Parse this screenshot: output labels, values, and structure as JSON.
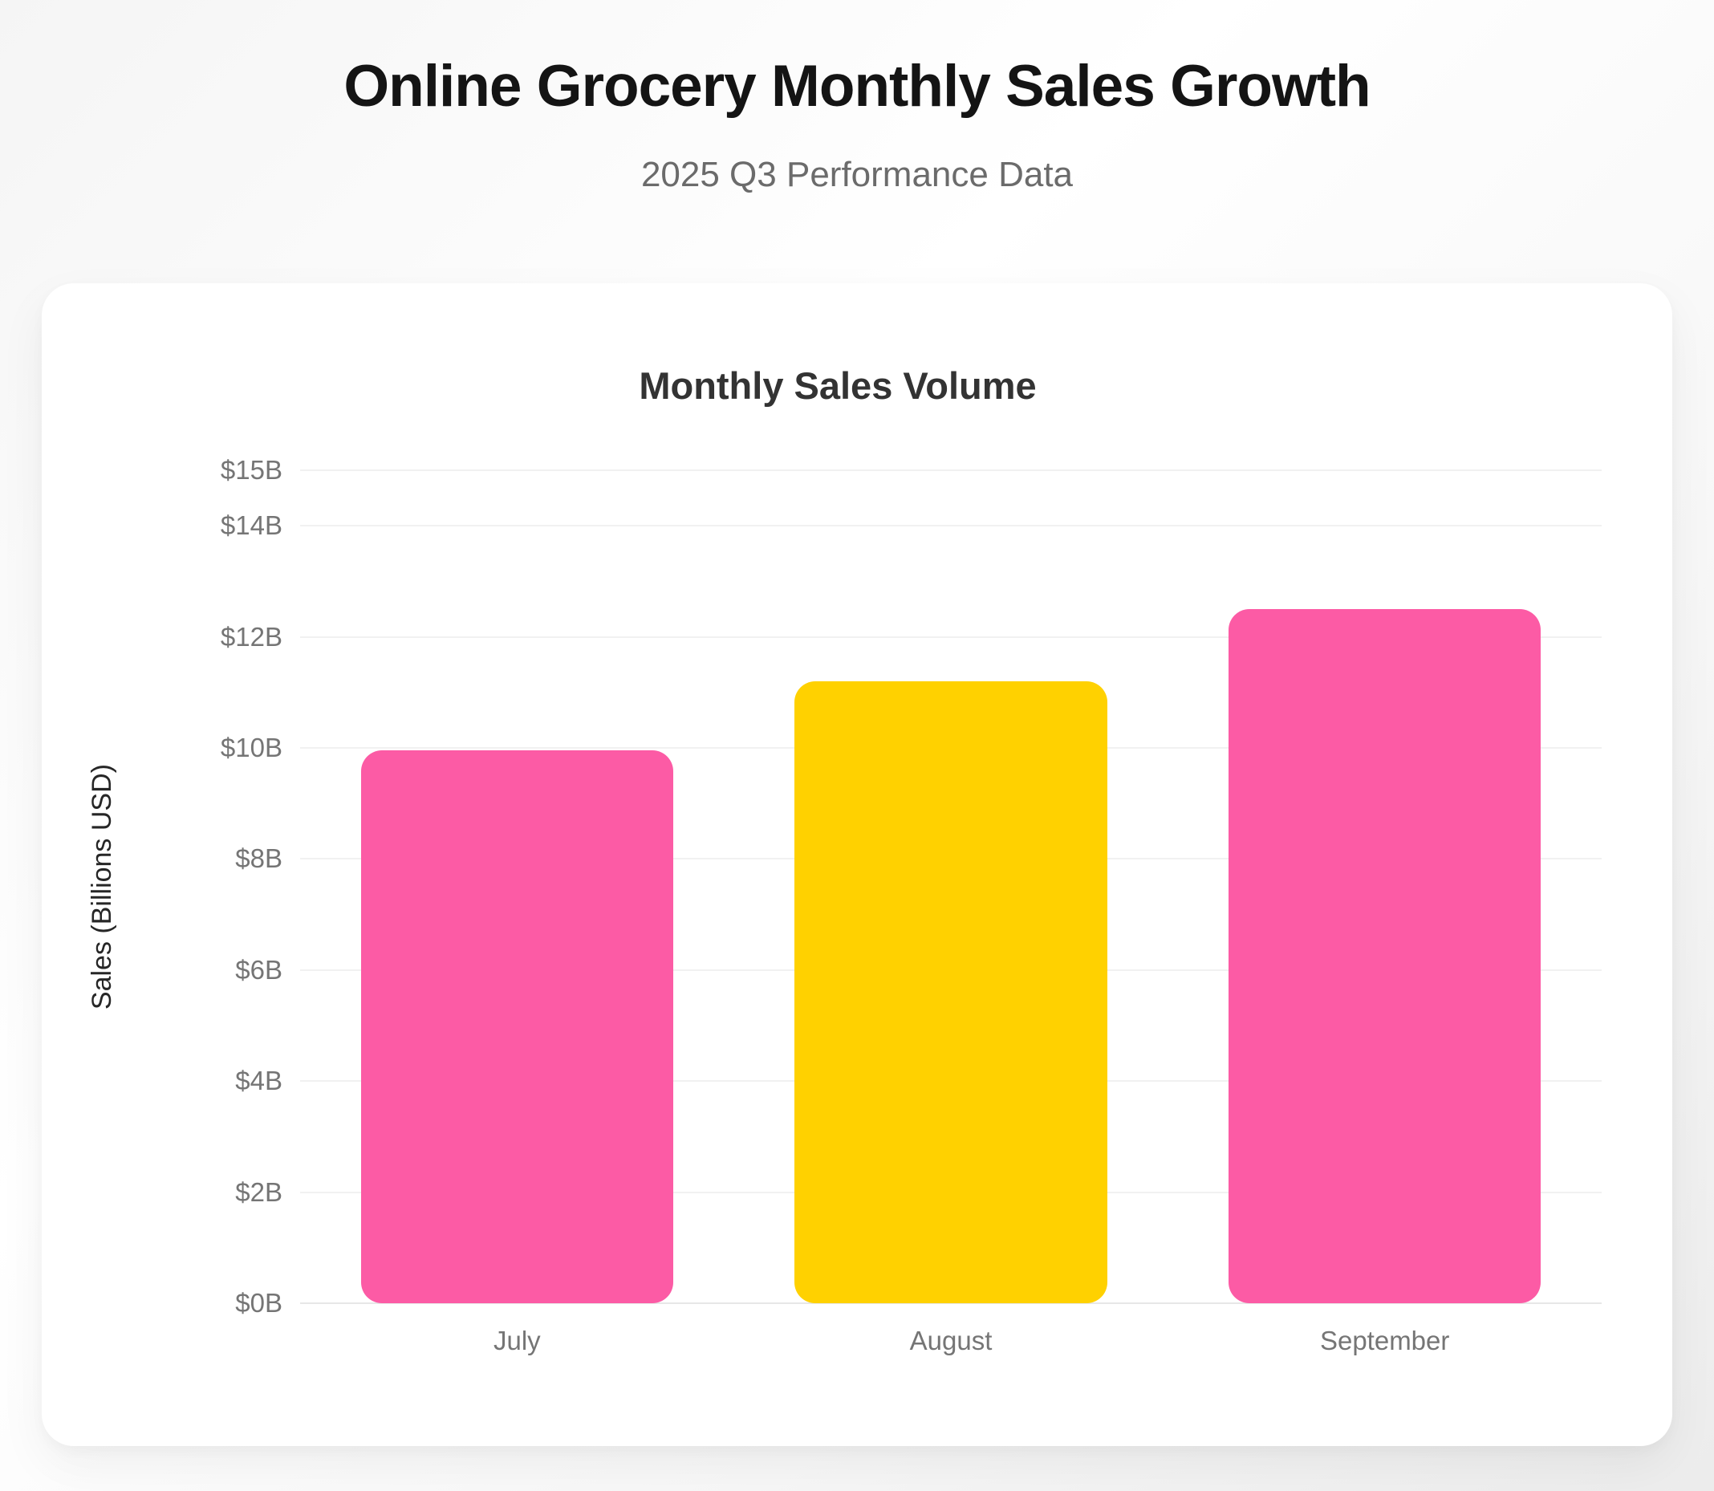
{
  "header": {
    "title": "Online Grocery Monthly Sales Growth",
    "subtitle": "2025 Q3 Performance Data"
  },
  "chart_data": {
    "type": "bar",
    "title": "Monthly Sales Volume",
    "xlabel": "",
    "ylabel": "Sales (Billions USD)",
    "categories": [
      "July",
      "August",
      "September"
    ],
    "values": [
      9.95,
      11.2,
      12.5
    ],
    "bar_colors": [
      "#FC5BA5",
      "#FFD100",
      "#FC5BA5"
    ],
    "ylim": [
      0,
      15
    ],
    "yticks": [
      0,
      2,
      4,
      6,
      8,
      10,
      12,
      14,
      15
    ],
    "ytick_labels": [
      "$0B",
      "$2B",
      "$4B",
      "$6B",
      "$8B",
      "$10B",
      "$12B",
      "$14B",
      "$15B"
    ],
    "grid": true,
    "grid_color": "#f1f1f1",
    "legend": false
  }
}
